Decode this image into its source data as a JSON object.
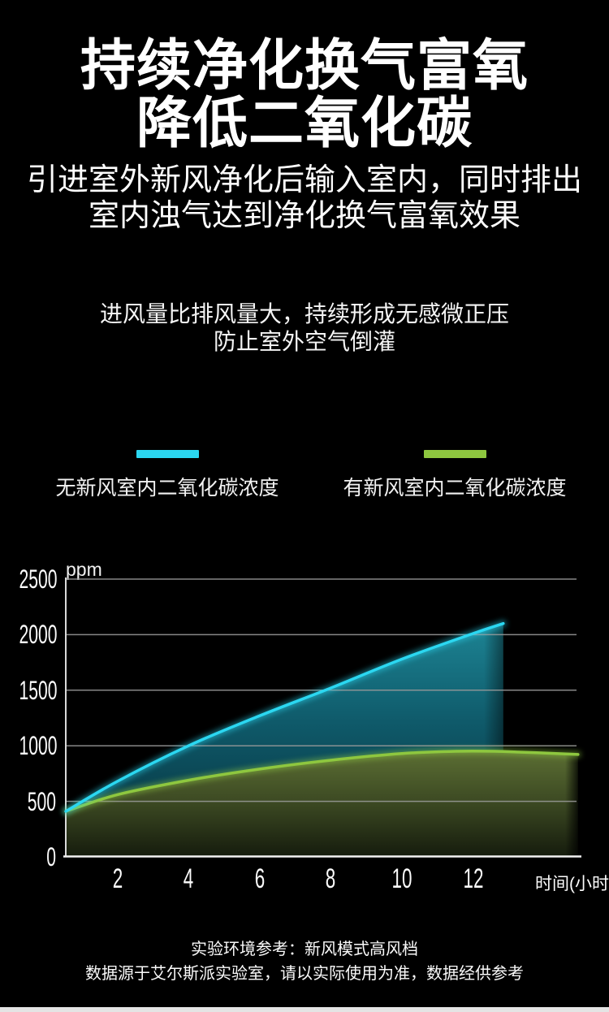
{
  "header": {
    "title_line1": "持续净化换气富氧",
    "title_line2": "降低二氧化碳",
    "subtitle_line1": "引进室外新风净化后输入室内，同时排出",
    "subtitle_line2": "室内浊气达到净化换气富氧效果"
  },
  "highlight": {
    "line1": "进风量比排风量大，持续形成无感微正压",
    "line2": "防止室外空气倒灌"
  },
  "legend": {
    "items": [
      {
        "label": "无新风室内二氧化碳浓度",
        "color": "#2bd7f1"
      },
      {
        "label": "有新风室内二氧化碳浓度",
        "color": "#8ec73f"
      }
    ]
  },
  "chart_data": {
    "type": "area",
    "unit_label": "ppm",
    "x_axis_label": "时间(小时)",
    "x_ticks": [
      2,
      4,
      6,
      8,
      10,
      12
    ],
    "y_ticks": [
      0,
      500,
      1000,
      1500,
      2000,
      2500
    ],
    "ylim": [
      0,
      2500
    ],
    "xlim_hours": [
      0.55,
      15
    ],
    "grid": true,
    "legend_position": "above-chart",
    "series": [
      {
        "name": "无新风室内二氧化碳浓度",
        "color": "#2bd7f1",
        "fill_top": "#1d8494",
        "fill_mid": "#0f5a6a",
        "fill_bottom": "#083945",
        "x": [
          0.55,
          2,
          4,
          6,
          8,
          10,
          12,
          12.85
        ],
        "y": [
          410,
          680,
          1000,
          1270,
          1520,
          1780,
          2010,
          2100
        ]
      },
      {
        "name": "有新风室内二氧化碳浓度",
        "color": "#8ec73f",
        "fill_top": "#5d7034",
        "fill_mid": "#3b4822",
        "fill_bottom": "#141a0c",
        "x": [
          0.55,
          2,
          4,
          6,
          8,
          10,
          11.5,
          12.85,
          14.95
        ],
        "y": [
          410,
          560,
          690,
          790,
          870,
          930,
          950,
          948,
          922
        ]
      }
    ]
  },
  "footer": {
    "line1": "实验环境参考：新风模式高风档",
    "line2": "数据源于艾尔斯派实验室，请以实际使用为准，数据经供参考"
  }
}
